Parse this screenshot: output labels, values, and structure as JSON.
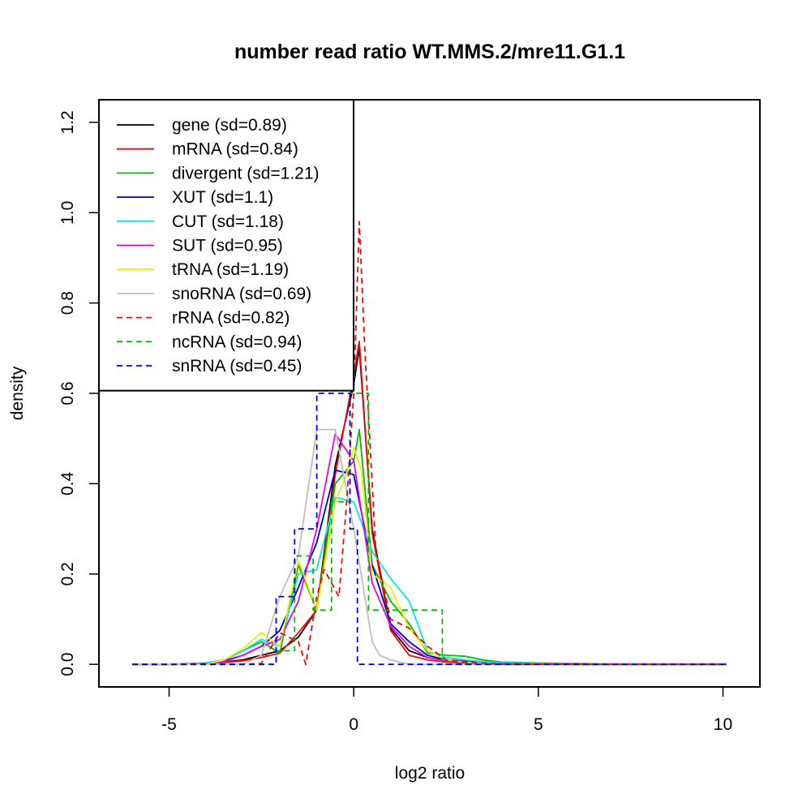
{
  "chart_data": {
    "type": "line",
    "title": "number read ratio WT.MMS.2/mre11.G1.1",
    "xlabel": "log2 ratio",
    "ylabel": "density",
    "xlim": [
      -6.9,
      11
    ],
    "ylim": [
      -0.05,
      1.25
    ],
    "xticks": [
      -5,
      0,
      5,
      10
    ],
    "xtick_labels": [
      "-5",
      "0",
      "5",
      "10"
    ],
    "yticks": [
      0.0,
      0.2,
      0.4,
      0.6,
      0.8,
      1.0,
      1.2
    ],
    "ytick_labels": [
      "0.0",
      "0.2",
      "0.4",
      "0.6",
      "0.8",
      "1.0",
      "1.2"
    ],
    "legend_position": "top-left",
    "series": [
      {
        "name": "gene",
        "legend": "gene (sd=0.89)",
        "color": "#000000",
        "dash": "solid",
        "x": [
          -6,
          -5.5,
          -5,
          -4.5,
          -4,
          -3.5,
          -3,
          -2.5,
          -2,
          -1.5,
          -1,
          -0.5,
          0,
          0.15,
          0.5,
          1,
          1.5,
          2,
          2.5,
          3,
          3.5,
          4,
          5,
          6,
          7,
          8,
          9,
          10.1
        ],
        "y": [
          0,
          0,
          0,
          0,
          0.002,
          0.005,
          0.01,
          0.02,
          0.03,
          0.06,
          0.12,
          0.44,
          0.62,
          0.7,
          0.3,
          0.08,
          0.03,
          0.015,
          0.008,
          0.005,
          0.003,
          0.002,
          0.001,
          0,
          0,
          0,
          0,
          0
        ]
      },
      {
        "name": "mRNA",
        "legend": "mRNA (sd=0.84)",
        "color": "#ff0000",
        "dash": "solid",
        "x": [
          -6,
          -5.5,
          -5,
          -4.5,
          -4,
          -3.5,
          -3,
          -2.5,
          -2,
          -1.5,
          -1,
          -0.5,
          0,
          0.15,
          0.5,
          1,
          1.5,
          2,
          2.5,
          3,
          3.5,
          4,
          5,
          6,
          7,
          8,
          9,
          10.1
        ],
        "y": [
          0,
          0,
          0,
          0,
          0.002,
          0.004,
          0.008,
          0.015,
          0.025,
          0.07,
          0.12,
          0.42,
          0.64,
          0.715,
          0.29,
          0.075,
          0.02,
          0.01,
          0.005,
          0.003,
          0.002,
          0.001,
          0,
          0,
          0,
          0,
          0,
          0
        ]
      },
      {
        "name": "divergent",
        "legend": "divergent (sd=1.21)",
        "color": "#00bb00",
        "dash": "solid",
        "x": [
          -6,
          -5,
          -4,
          -3.5,
          -3,
          -2.5,
          -2,
          -1.5,
          -1,
          -0.5,
          0,
          0.15,
          0.5,
          1,
          1.5,
          2,
          2.5,
          3,
          3.5,
          4,
          5,
          6,
          7,
          8,
          9,
          10.1
        ],
        "y": [
          0,
          0,
          0.003,
          0.01,
          0.03,
          0.05,
          0.025,
          0.22,
          0.12,
          0.4,
          0.45,
          0.52,
          0.22,
          0.14,
          0.09,
          0.025,
          0.02,
          0.018,
          0.01,
          0.005,
          0.003,
          0.002,
          0.001,
          0.001,
          0.001,
          0.001
        ]
      },
      {
        "name": "XUT",
        "legend": "XUT (sd=1.1)",
        "color": "#0000cc",
        "dash": "solid",
        "x": [
          -6,
          -5,
          -4,
          -3.5,
          -3,
          -2.5,
          -2,
          -1.5,
          -1,
          -0.5,
          0,
          0.5,
          1,
          1.5,
          2,
          2.5,
          3,
          3.5,
          4,
          5,
          6,
          7,
          8,
          9,
          10.1
        ],
        "y": [
          0,
          0,
          0.002,
          0.008,
          0.02,
          0.04,
          0.075,
          0.17,
          0.27,
          0.43,
          0.42,
          0.22,
          0.09,
          0.05,
          0.02,
          0.01,
          0.007,
          0.004,
          0.002,
          0.001,
          0,
          0,
          0,
          0,
          0
        ]
      },
      {
        "name": "CUT",
        "legend": "CUT (sd=1.18)",
        "color": "#00e5ee",
        "dash": "solid",
        "x": [
          -6,
          -5,
          -4,
          -3.5,
          -3,
          -2.5,
          -2,
          -1.5,
          -1,
          -0.5,
          0,
          0.5,
          1,
          1.5,
          2,
          2.5,
          3,
          3.5,
          4,
          5,
          6,
          7,
          8,
          9,
          10.1
        ],
        "y": [
          0,
          0,
          0.003,
          0.01,
          0.03,
          0.055,
          0.04,
          0.2,
          0.21,
          0.37,
          0.36,
          0.25,
          0.19,
          0.14,
          0.03,
          0.015,
          0.01,
          0.006,
          0.004,
          0.002,
          0.001,
          0.001,
          0,
          0,
          0
        ]
      },
      {
        "name": "SUT",
        "legend": "SUT (sd=0.95)",
        "color": "#ee00ee",
        "dash": "solid",
        "x": [
          -6,
          -5,
          -4,
          -3.5,
          -3,
          -2.5,
          -2,
          -1.5,
          -1,
          -0.5,
          0,
          0.5,
          1,
          1.5,
          2,
          2.5,
          3,
          3.5,
          4,
          5,
          6,
          7,
          8,
          9,
          10.1
        ],
        "y": [
          0,
          0,
          0.002,
          0.006,
          0.02,
          0.04,
          0.055,
          0.14,
          0.3,
          0.51,
          0.45,
          0.18,
          0.085,
          0.04,
          0.015,
          0.008,
          0.005,
          0.003,
          0.002,
          0.001,
          0,
          0,
          0,
          0,
          0
        ]
      },
      {
        "name": "tRNA",
        "legend": "tRNA (sd=1.19)",
        "color": "#eeee00",
        "dash": "solid",
        "x": [
          -6,
          -5,
          -4,
          -3.5,
          -3,
          -2.5,
          -2,
          -1.5,
          -1,
          -0.5,
          -0.2,
          0,
          0.2,
          0.5,
          1,
          1.5,
          2,
          2.5,
          3,
          3.5,
          4,
          5,
          6,
          10.1
        ],
        "y": [
          0,
          0,
          0,
          0.01,
          0.035,
          0.07,
          0.04,
          0.23,
          0.12,
          0.36,
          0.42,
          0.48,
          0.43,
          0.2,
          0.17,
          0.08,
          0.03,
          0.01,
          0.005,
          0.002,
          0,
          0,
          0,
          0
        ]
      },
      {
        "name": "snoRNA",
        "legend": "snoRNA (sd=0.69)",
        "color": "#bebebe",
        "dash": "solid",
        "x": [
          -6,
          -4,
          -3,
          -2.5,
          -2,
          -1.5,
          -1,
          -0.5,
          0,
          0.5,
          0.7,
          1,
          1.5,
          2,
          3,
          5,
          10.1
        ],
        "y": [
          0,
          0,
          0,
          0.02,
          0.15,
          0.24,
          0.52,
          0.52,
          0.3,
          0.05,
          0.02,
          0.01,
          0,
          0,
          0,
          0,
          0
        ]
      },
      {
        "name": "rRNA",
        "legend": "rRNA (sd=0.82)",
        "color": "#ff0000",
        "dash": "dashed",
        "x": [
          -6,
          -5,
          -4,
          -3,
          -2.5,
          -2,
          -1.5,
          -1.3,
          -1,
          -0.8,
          -0.6,
          -0.4,
          -0.2,
          0,
          0.15,
          0.3,
          0.6,
          1,
          1.5,
          2,
          2.5,
          3,
          4,
          5,
          10.1
        ],
        "y": [
          0,
          0,
          0,
          0,
          0.002,
          0.07,
          0.05,
          0,
          0.15,
          0.21,
          0.18,
          0.15,
          0.35,
          0.6,
          0.98,
          0.7,
          0.25,
          0.1,
          0.08,
          0.04,
          0.01,
          0.005,
          0,
          0,
          0
        ]
      },
      {
        "name": "ncRNA",
        "legend": "ncRNA (sd=0.94)",
        "color": "#00bb00",
        "dash": "dashed",
        "x": [
          -6,
          -4,
          -2.1,
          -2.1,
          -1.6,
          -1.6,
          -1.1,
          -1.1,
          -0.6,
          -0.6,
          -0.1,
          -0.1,
          0.4,
          0.4,
          0.9,
          0.9,
          1.4,
          1.4,
          1.9,
          1.9,
          2.4,
          2.4,
          10.1
        ],
        "y": [
          0,
          0,
          0,
          0.03,
          0.03,
          0.24,
          0.24,
          0.12,
          0.12,
          0.36,
          0.36,
          0.6,
          0.6,
          0.12,
          0.12,
          0.12,
          0.12,
          0.12,
          0.12,
          0.12,
          0.12,
          0,
          0
        ]
      },
      {
        "name": "snRNA",
        "legend": "snRNA (sd=0.45)",
        "color": "#0000ee",
        "dash": "dashed",
        "x": [
          -6,
          -2.1,
          -2.1,
          -1.6,
          -1.6,
          -1.0,
          -1.0,
          -0.8,
          -0.8,
          -0.1,
          -0.1,
          0.1,
          0.1,
          10.1
        ],
        "y": [
          0,
          0,
          0.15,
          0.15,
          0.3,
          0.3,
          0.6,
          0.6,
          0.6,
          0.6,
          0.3,
          0.3,
          0,
          0
        ]
      }
    ]
  }
}
